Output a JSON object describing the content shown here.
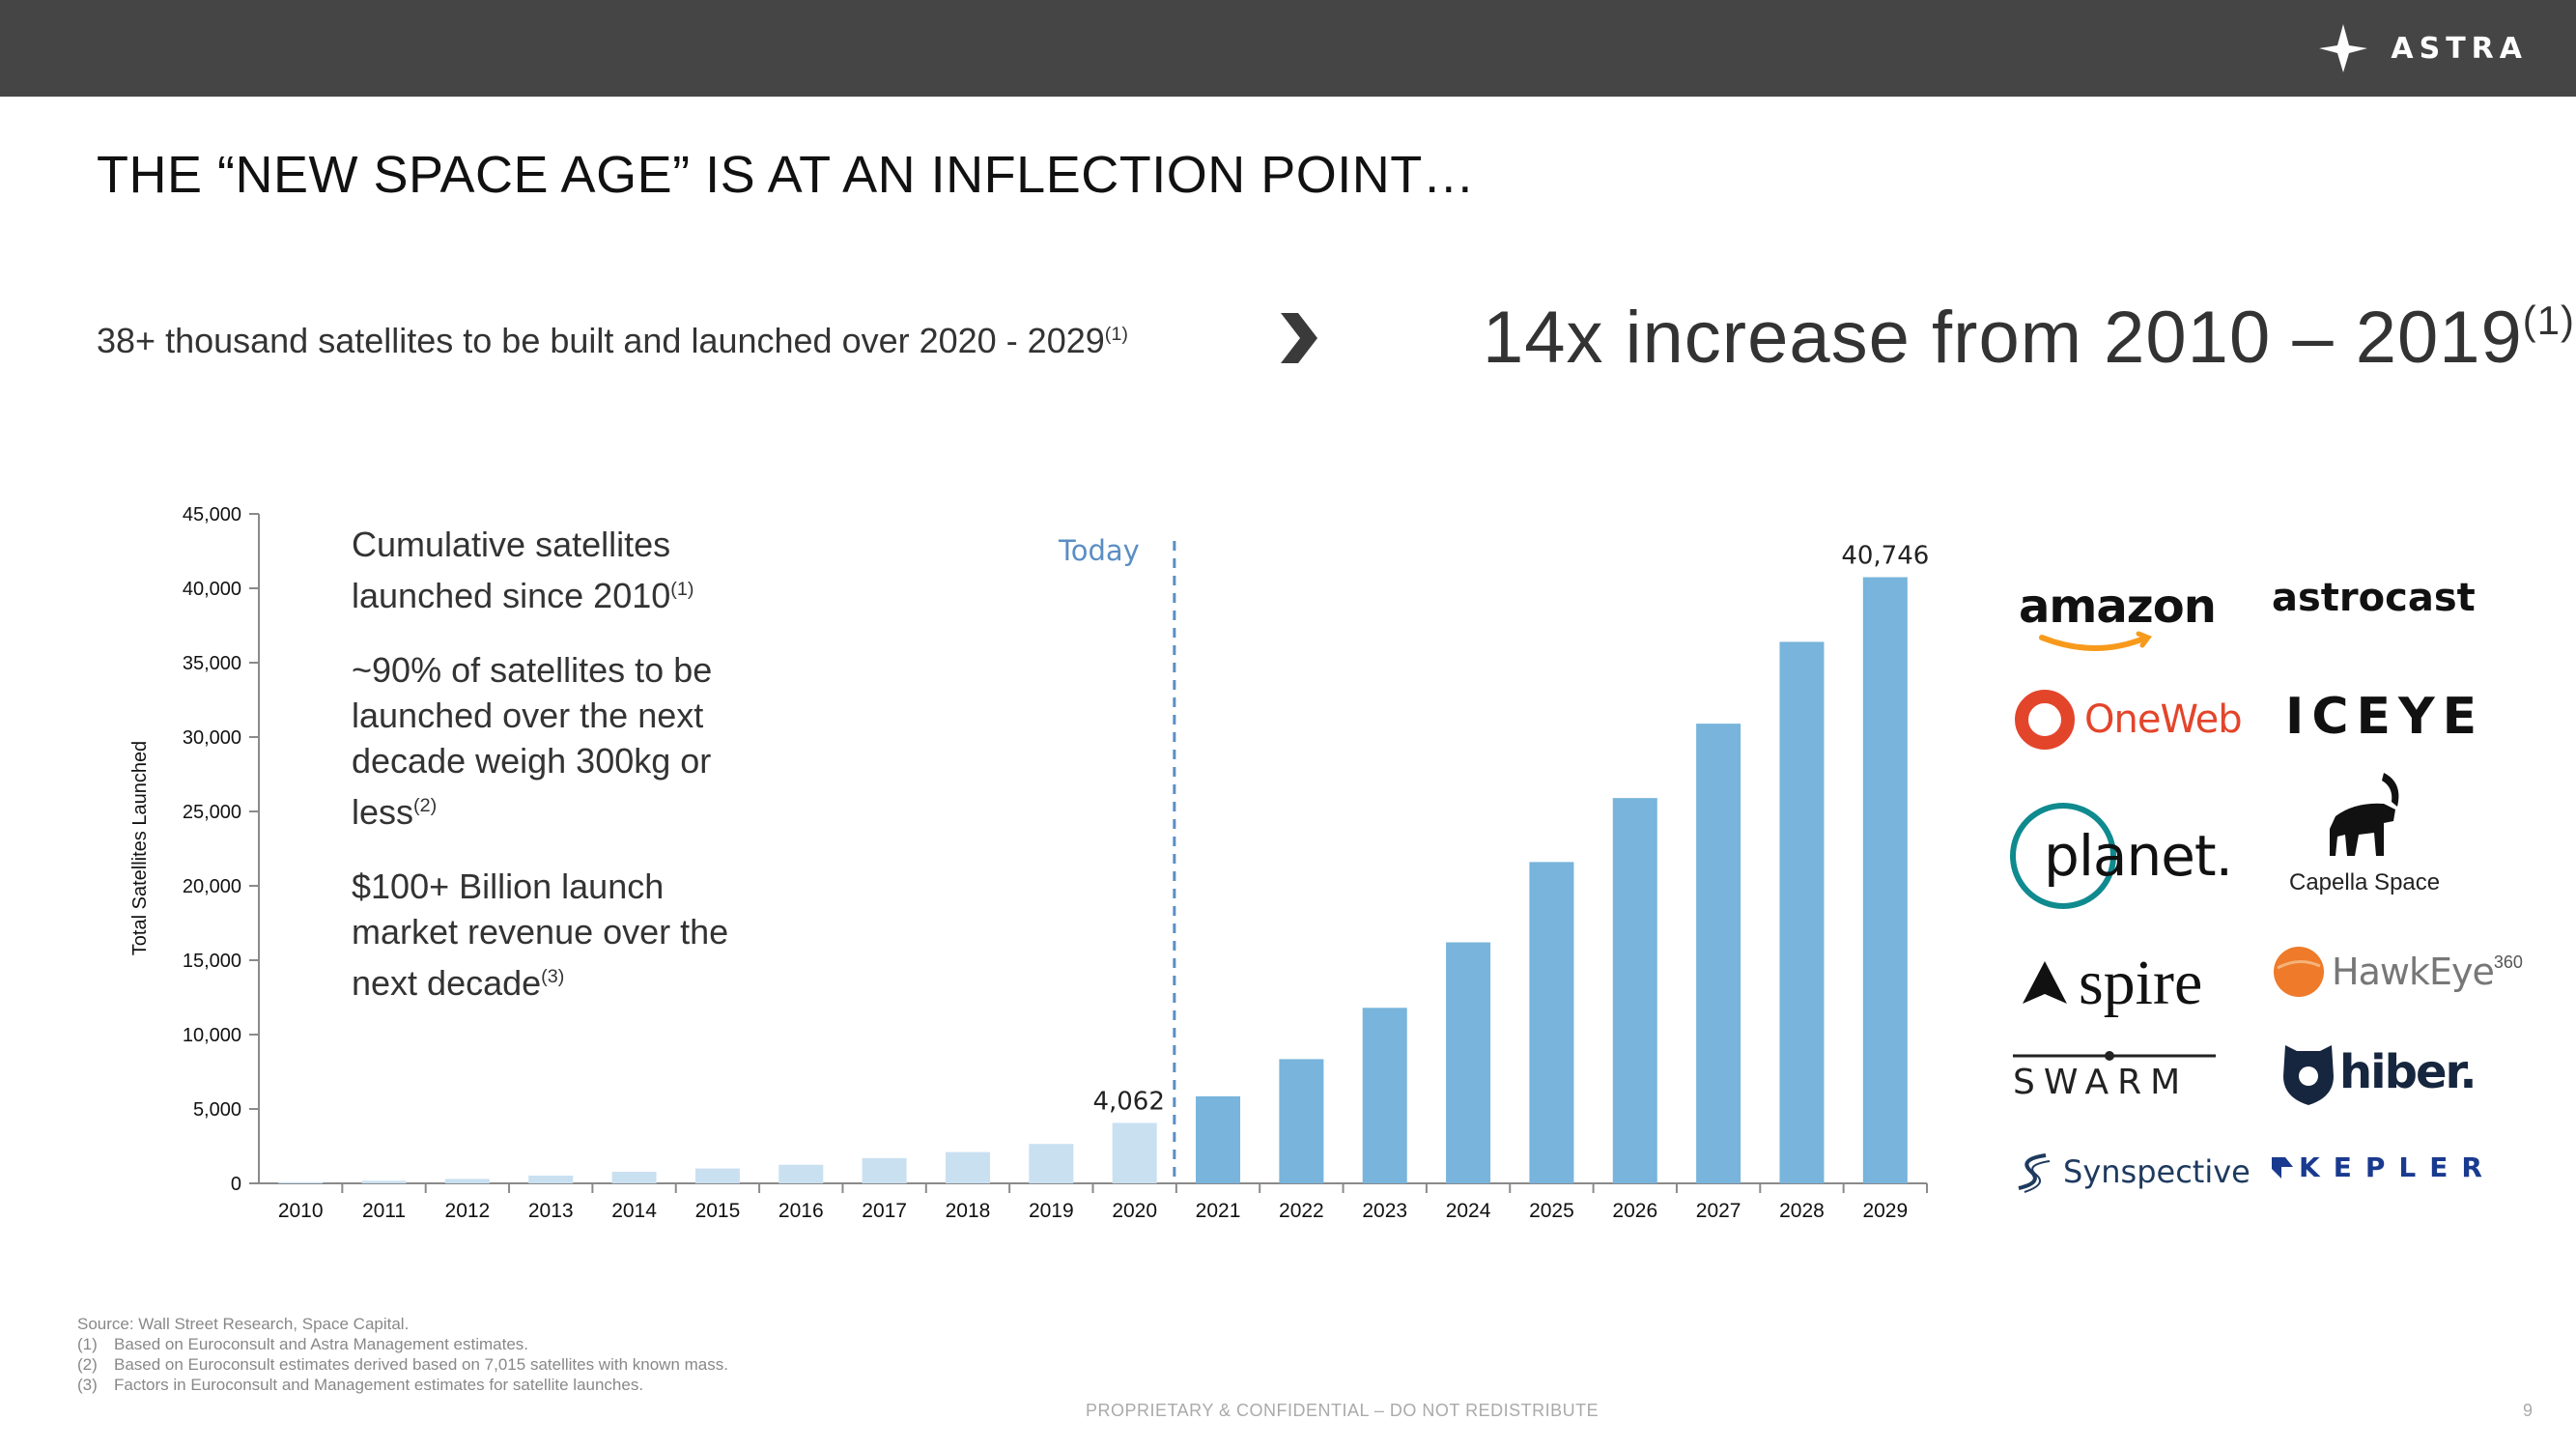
{
  "brand": {
    "name": "ASTRA"
  },
  "title": "THE “NEW SPACE AGE” IS AT AN INFLECTION POINT…",
  "subtitle": {
    "text": "38+ thousand satellites to be built and launched over 2020 - 2029",
    "ref": "(1)"
  },
  "headline": {
    "text": "14x increase from 2010 – 2019",
    "ref": "(1)"
  },
  "notes": [
    {
      "text": "Cumulative satellites launched since 2010",
      "ref": "(1)"
    },
    {
      "text": "~90% of satellites to be launched over the next decade weigh 300kg or less",
      "ref": "(2)"
    },
    {
      "text": "$100+ Billion launch market revenue over the next decade",
      "ref": "(3)"
    }
  ],
  "chart_data": {
    "type": "bar",
    "ylabel": "Total Satellites Launched",
    "xlabel": "",
    "ylim": [
      0,
      45000
    ],
    "yticks": [
      "0",
      "5,000",
      "10,000",
      "15,000",
      "20,000",
      "25,000",
      "30,000",
      "35,000",
      "40,000",
      "45,000"
    ],
    "categories": [
      "2010",
      "2011",
      "2012",
      "2013",
      "2014",
      "2015",
      "2016",
      "2017",
      "2018",
      "2019",
      "2020",
      "2021",
      "2022",
      "2023",
      "2024",
      "2025",
      "2026",
      "2027",
      "2028",
      "2029"
    ],
    "values": [
      80,
      170,
      300,
      520,
      780,
      1000,
      1250,
      1700,
      2100,
      2650,
      4062,
      5850,
      8350,
      11800,
      16200,
      21600,
      25900,
      30900,
      36400,
      40746
    ],
    "data_labels": {
      "2020": "4,062",
      "2029": "40,746"
    },
    "annotation": "Today",
    "colors": {
      "historical": "#c9e0f1",
      "forecast": "#78b4db",
      "today_line": "#5a8ec4"
    }
  },
  "logos": [
    "amazon",
    "astrocast",
    "OneWeb",
    "ICEYE",
    "planet.",
    "Capella Space",
    "spire",
    "HawkEye",
    "360",
    "SWARM",
    "hiber.",
    "Synspective",
    "KEPLER"
  ],
  "footnotes": {
    "source": "Source:  Wall Street Research, Space Capital.",
    "items": [
      {
        "k": "(1)",
        "t": "Based on Euroconsult and Astra Management estimates."
      },
      {
        "k": "(2)",
        "t": "Based on Euroconsult estimates derived based on 7,015 satellites with known mass."
      },
      {
        "k": "(3)",
        "t": "Factors in Euroconsult and Management estimates for satellite launches."
      }
    ]
  },
  "confidential": "PROPRIETARY & CONFIDENTIAL – DO NOT REDISTRIBUTE",
  "page_number": "9"
}
